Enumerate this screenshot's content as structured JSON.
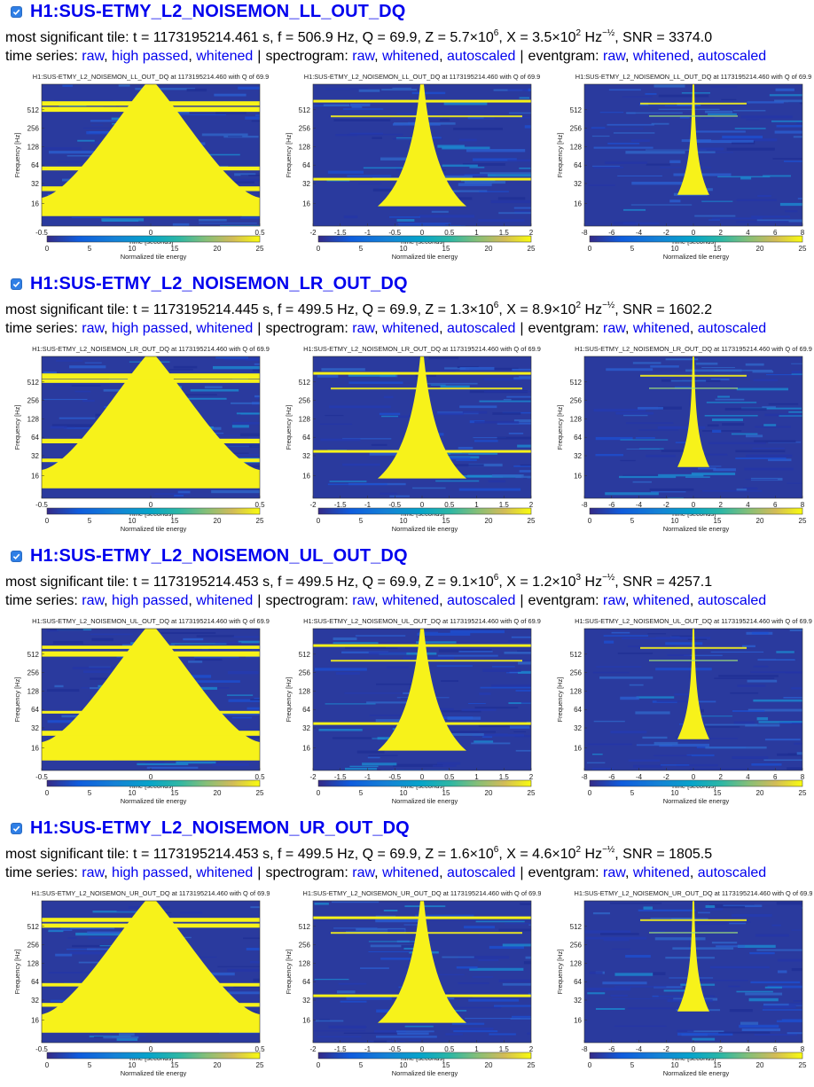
{
  "labels": {
    "tile_prefix": "most significant tile:",
    "time_series": "time series:",
    "spectrogram": "spectrogram:",
    "eventgram": "eventgram:",
    "separator": "|",
    "freq_axis": "Frequency [Hz]",
    "time_axis": "Time [seconds]",
    "colorbar_label": "Normalized tile energy",
    "colorbar_ticks": [
      "0",
      "5",
      "10",
      "15",
      "20",
      "25"
    ],
    "freq_ticks": [
      "512",
      "256",
      "128",
      "64",
      "32",
      "16"
    ]
  },
  "links": {
    "time_series": [
      "raw",
      "high passed",
      "whitened"
    ],
    "spectrogram": [
      "raw",
      "whitened",
      "autoscaled"
    ],
    "eventgram": [
      "raw",
      "whitened",
      "autoscaled"
    ]
  },
  "colors": {
    "link": "#0000ee",
    "checkbox": "#2f7fe6",
    "plot_bg": "#2a3a9e",
    "energy_high": "#f7f21a"
  },
  "channels": [
    {
      "name": "H1:SUS-ETMY_L2_NOISEMON_LL_OUT_DQ",
      "checked": true,
      "tile": {
        "t": "1173195214.461",
        "f": "506.9",
        "Q": "69.9",
        "Z": "5.7×10",
        "Z_exp": "6",
        "X": "3.5×10",
        "X_exp": "2",
        "SNR": "3374.0"
      },
      "plot_titles": [
        "H1:SUS-ETMY_L2_NOISEMON_LL_OUT_DQ at 1173195214.460 with Q of 69.9",
        "H1:SUS-ETMY_L2_NOISEMON_LL_OUT_DQ at 1173195214.460 with Q of 69.9",
        "H1:SUS-ETMY_L2_NOISEMON_LL_OUT_DQ at 1173195214.460 with Q of 69.9"
      ]
    },
    {
      "name": "H1:SUS-ETMY_L2_NOISEMON_LR_OUT_DQ",
      "checked": true,
      "tile": {
        "t": "1173195214.445",
        "f": "499.5",
        "Q": "69.9",
        "Z": "1.3×10",
        "Z_exp": "6",
        "X": "8.9×10",
        "X_exp": "2",
        "SNR": "1602.2"
      },
      "plot_titles": [
        "H1:SUS-ETMY_L2_NOISEMON_LR_OUT_DQ at 1173195214.460 with Q of 69.9",
        "H1:SUS-ETMY_L2_NOISEMON_LR_OUT_DQ at 1173195214.460 with Q of 69.9",
        "H1:SUS-ETMY_L2_NOISEMON_LR_OUT_DQ at 1173195214.460 with Q of 69.9"
      ]
    },
    {
      "name": "H1:SUS-ETMY_L2_NOISEMON_UL_OUT_DQ",
      "checked": true,
      "tile": {
        "t": "1173195214.453",
        "f": "499.5",
        "Q": "69.9",
        "Z": "9.1×10",
        "Z_exp": "6",
        "X": "1.2×10",
        "X_exp": "3",
        "SNR": "4257.1"
      },
      "plot_titles": [
        "H1:SUS-ETMY_L2_NOISEMON_UL_OUT_DQ at 1173195214.460 with Q of 69.9",
        "H1:SUS-ETMY_L2_NOISEMON_UL_OUT_DQ at 1173195214.460 with Q of 69.9",
        "H1:SUS-ETMY_L2_NOISEMON_UL_OUT_DQ at 1173195214.460 with Q of 69.9"
      ]
    },
    {
      "name": "H1:SUS-ETMY_L2_NOISEMON_UR_OUT_DQ",
      "checked": true,
      "tile": {
        "t": "1173195214.453",
        "f": "499.5",
        "Q": "69.9",
        "Z": "1.6×10",
        "Z_exp": "6",
        "X": "4.6×10",
        "X_exp": "2",
        "SNR": "1805.5"
      },
      "plot_titles": [
        "H1:SUS-ETMY_L2_NOISEMON_UR_OUT_DQ at 1173195214.460 with Q of 69.9",
        "H1:SUS-ETMY_L2_NOISEMON_UR_OUT_DQ at 1173195214.460 with Q of 69.9",
        "H1:SUS-ETMY_L2_NOISEMON_UR_OUT_DQ at 1173195214.460 with Q of 69.9"
      ]
    }
  ],
  "plots": [
    {
      "kind": "raw",
      "time_ticks": [
        "-0.5",
        "0",
        "0.5"
      ],
      "time_values": [
        -0.5,
        0,
        0.5
      ],
      "xlim": [
        -0.5,
        0.5
      ]
    },
    {
      "kind": "whitened",
      "time_ticks": [
        "-2",
        "-1.5",
        "-1",
        "-0.5",
        "0",
        "0.5",
        "1",
        "1.5",
        "2"
      ],
      "time_values": [
        -2,
        -1.5,
        -1,
        -0.5,
        0,
        0.5,
        1,
        1.5,
        2
      ],
      "xlim": [
        -2,
        2
      ]
    },
    {
      "kind": "autoscaled",
      "time_ticks": [
        "-8",
        "-6",
        "-4",
        "-2",
        "0",
        "2",
        "4",
        "6",
        "8"
      ],
      "time_values": [
        -8,
        -6,
        -4,
        -2,
        0,
        2,
        4,
        6,
        8
      ],
      "xlim": [
        -8,
        8
      ]
    }
  ]
}
